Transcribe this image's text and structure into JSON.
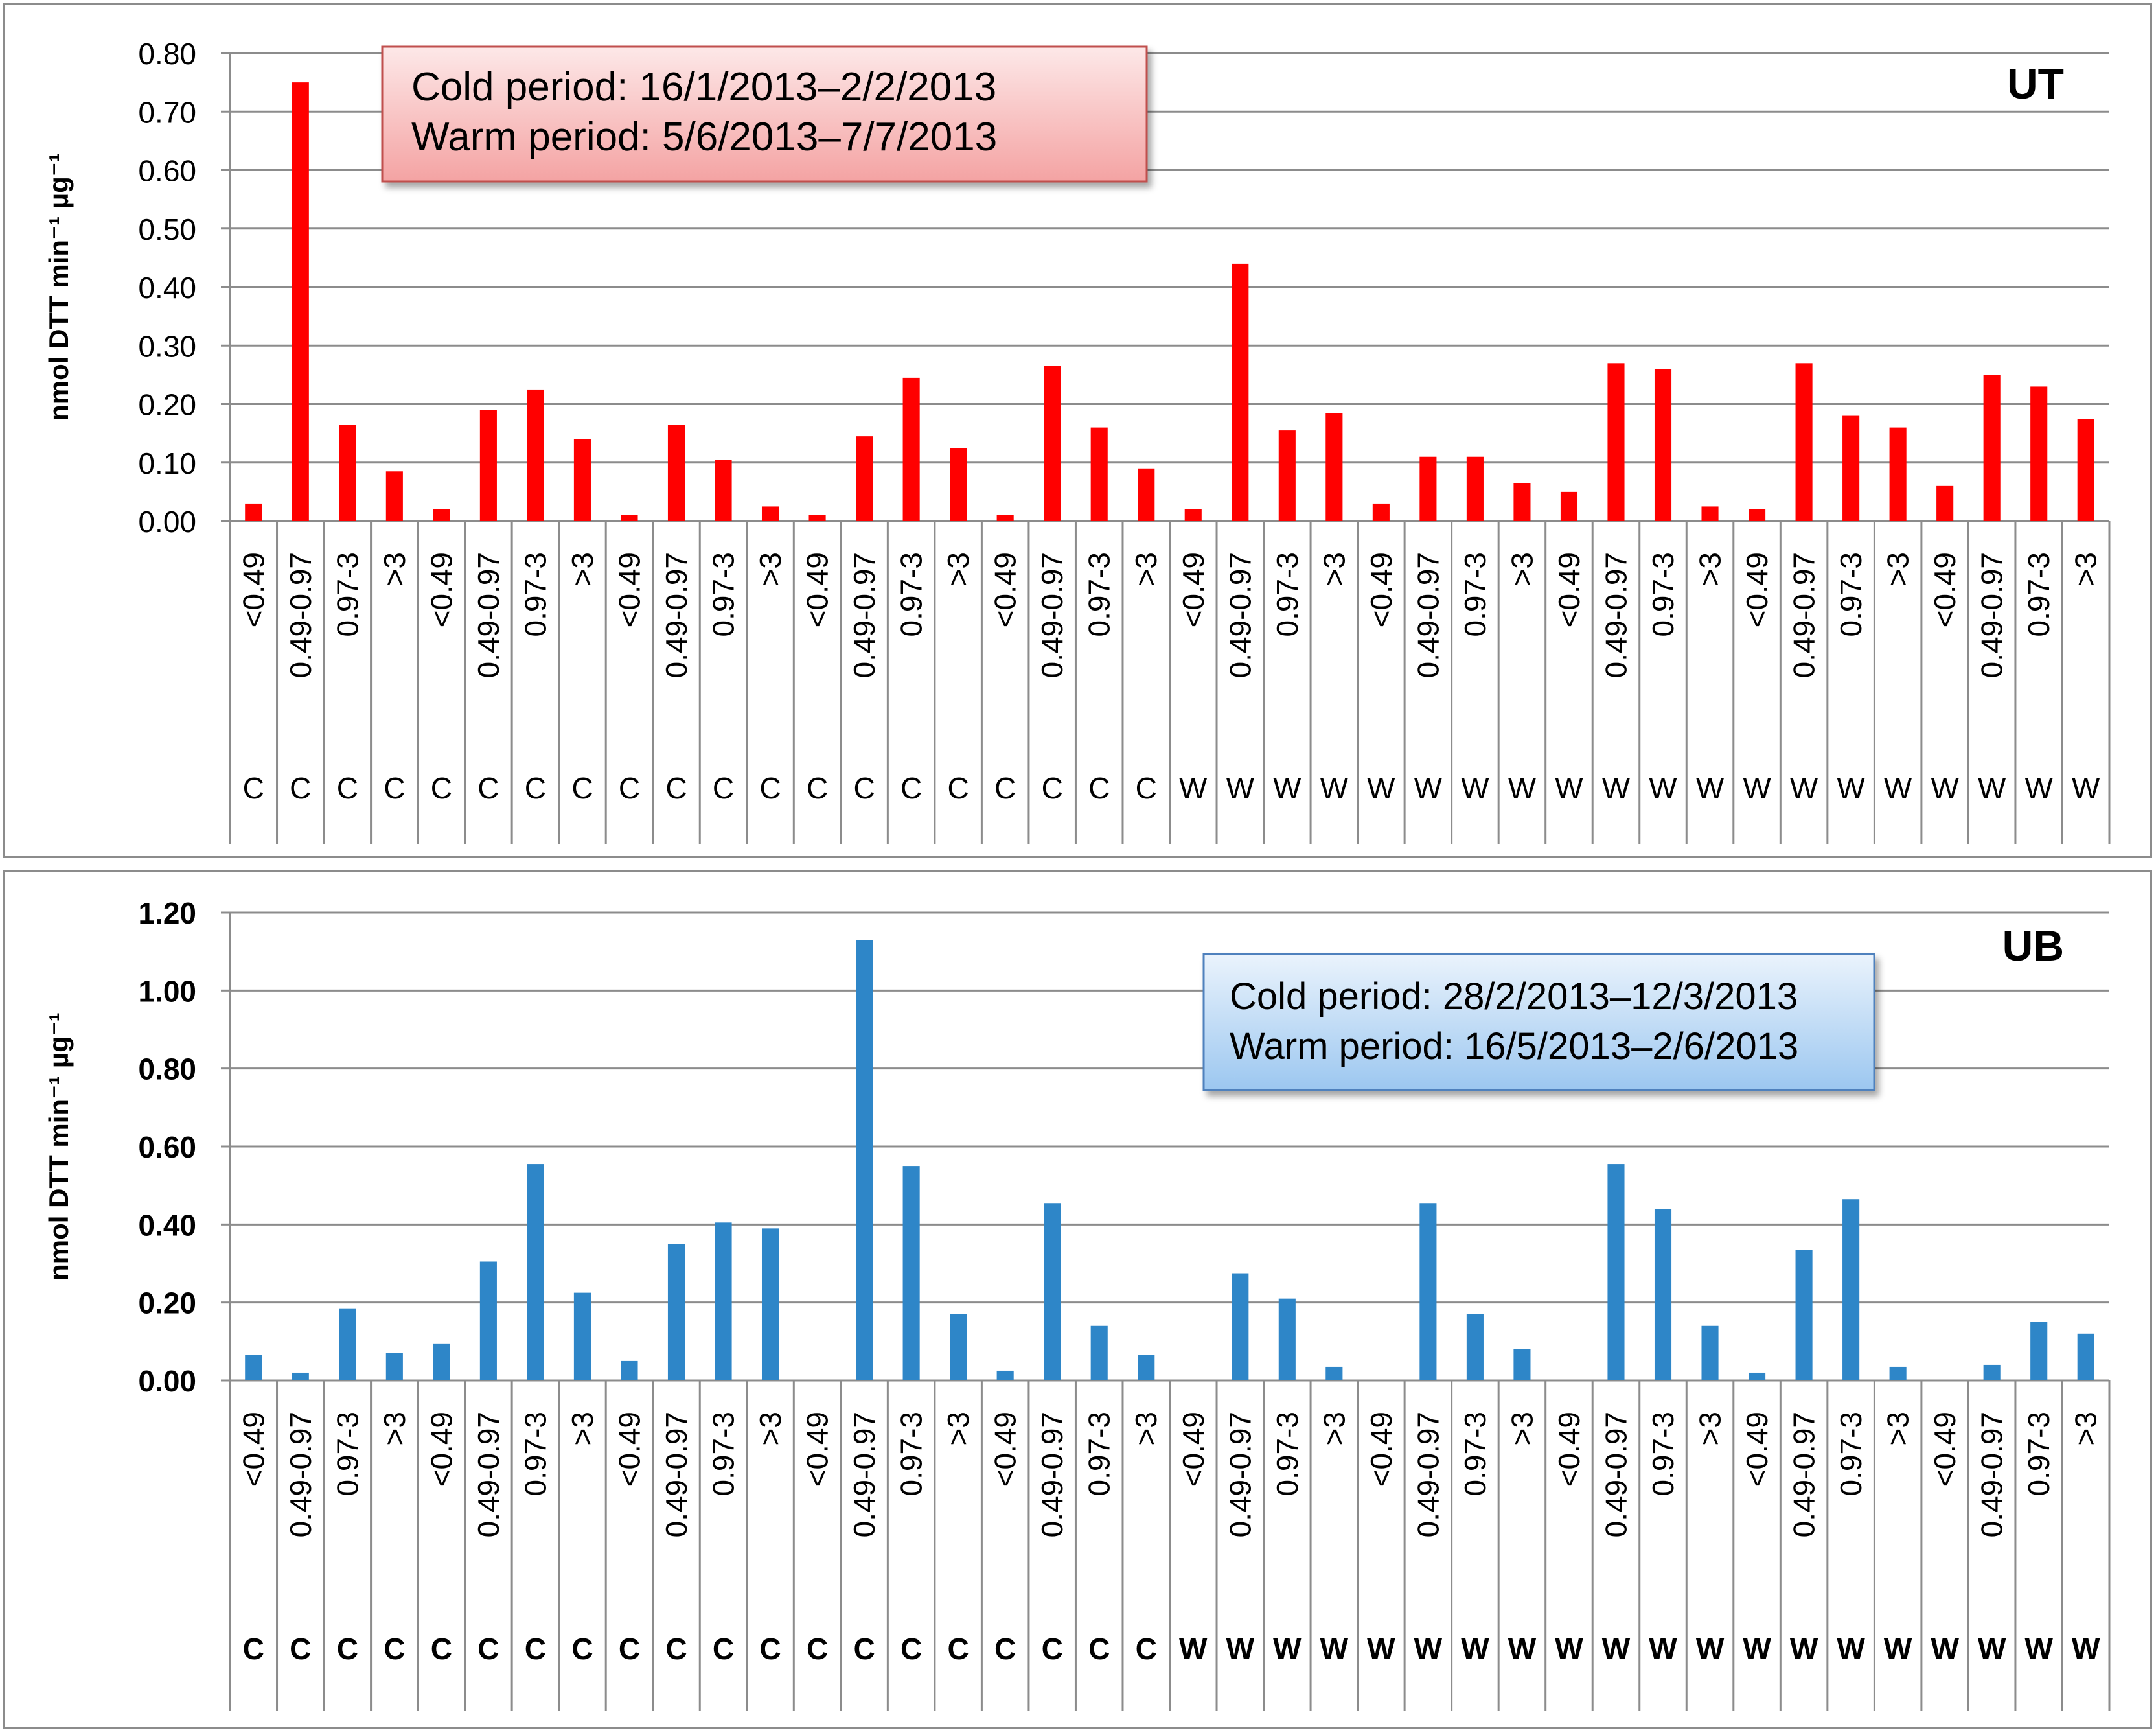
{
  "chart_data": [
    {
      "type": "bar",
      "panel_label": "UT",
      "ylabel": "nmol DTT  min⁻¹ µg⁻¹",
      "ylim": [
        0,
        0.8
      ],
      "yticks": [
        "0.00",
        "0.10",
        "0.20",
        "0.30",
        "0.40",
        "0.50",
        "0.60",
        "0.70",
        "0.80"
      ],
      "ytick_values": [
        0,
        0.1,
        0.2,
        0.3,
        0.4,
        0.5,
        0.6,
        0.7,
        0.8
      ],
      "categories": [
        "<0.49",
        "0.49-0.97",
        "0.97-3",
        ">3",
        "<0.49",
        "0.49-0.97",
        "0.97-3",
        ">3",
        "<0.49",
        "0.49-0.97",
        "0.97-3",
        ">3",
        "<0.49",
        "0.49-0.97",
        "0.97-3",
        ">3",
        "<0.49",
        "0.49-0.97",
        "0.97-3",
        ">3",
        "<0.49",
        "0.49-0.97",
        "0.97-3",
        ">3",
        "<0.49",
        "0.49-0.97",
        "0.97-3",
        ">3",
        "<0.49",
        "0.49-0.97",
        "0.97-3",
        ">3",
        "<0.49",
        "0.49-0.97",
        "0.97-3",
        ">3",
        "<0.49",
        "0.49-0.97",
        "0.97-3",
        ">3"
      ],
      "period": [
        "C",
        "C",
        "C",
        "C",
        "C",
        "C",
        "C",
        "C",
        "C",
        "C",
        "C",
        "C",
        "C",
        "C",
        "C",
        "C",
        "C",
        "C",
        "C",
        "C",
        "W",
        "W",
        "W",
        "W",
        "W",
        "W",
        "W",
        "W",
        "W",
        "W",
        "W",
        "W",
        "W",
        "W",
        "W",
        "W",
        "W",
        "W",
        "W",
        "W"
      ],
      "values": [
        0.03,
        0.75,
        0.165,
        0.085,
        0.02,
        0.19,
        0.225,
        0.14,
        0.01,
        0.165,
        0.105,
        0.025,
        0.01,
        0.145,
        0.245,
        0.125,
        0.01,
        0.265,
        0.16,
        0.09,
        0.02,
        0.44,
        0.155,
        0.185,
        0.03,
        0.11,
        0.11,
        0.065,
        0.05,
        0.27,
        0.26,
        0.025,
        0.02,
        0.27,
        0.18,
        0.16,
        0.06,
        0.25,
        0.23,
        0.175
      ],
      "bar_color": "#ff0000",
      "period_label_bold": false,
      "note_box": {
        "lines": [
          "Cold period: 16/1/2013–2/2/2013",
          "Warm period:  5/6/2013–7/7/2013"
        ],
        "fill_top": "#fde8e8",
        "fill_bottom": "#f4a3a3",
        "border": "#c0504d"
      },
      "grid": true,
      "legend": "none"
    },
    {
      "type": "bar",
      "panel_label": "UB",
      "ylabel": "nmol DTT  min⁻¹ µg⁻¹",
      "ylim": [
        0,
        1.2
      ],
      "yticks": [
        "0.00",
        "0.20",
        "0.40",
        "0.60",
        "0.80",
        "1.00",
        "1.20"
      ],
      "ytick_values": [
        0,
        0.2,
        0.4,
        0.6,
        0.8,
        1.0,
        1.2
      ],
      "categories": [
        "<0.49",
        "0.49-0.97",
        "0.97-3",
        ">3",
        "<0.49",
        "0.49-0.97",
        "0.97-3",
        ">3",
        "<0.49",
        "0.49-0.97",
        "0.97-3",
        ">3",
        "<0.49",
        "0.49-0.97",
        "0.97-3",
        ">3",
        "<0.49",
        "0.49-0.97",
        "0.97-3",
        ">3",
        "<0.49",
        "0.49-0.97",
        "0.97-3",
        ">3",
        "<0.49",
        "0.49-0.97",
        "0.97-3",
        ">3",
        "<0.49",
        "0.49-0.97",
        "0.97-3",
        ">3",
        "<0.49",
        "0.49-0.97",
        "0.97-3",
        ">3",
        "<0.49",
        "0.49-0.97",
        "0.97-3",
        ">3"
      ],
      "period": [
        "C",
        "C",
        "C",
        "C",
        "C",
        "C",
        "C",
        "C",
        "C",
        "C",
        "C",
        "C",
        "C",
        "C",
        "C",
        "C",
        "C",
        "C",
        "C",
        "C",
        "W",
        "W",
        "W",
        "W",
        "W",
        "W",
        "W",
        "W",
        "W",
        "W",
        "W",
        "W",
        "W",
        "W",
        "W",
        "W",
        "W",
        "W",
        "W",
        "W"
      ],
      "values": [
        0.065,
        0.02,
        0.185,
        0.07,
        0.095,
        0.305,
        0.555,
        0.225,
        0.05,
        0.35,
        0.405,
        0.39,
        0.0,
        1.13,
        0.55,
        0.17,
        0.025,
        0.455,
        0.14,
        0.065,
        0.0,
        0.275,
        0.21,
        0.035,
        0.0,
        0.455,
        0.17,
        0.08,
        0.0,
        0.555,
        0.44,
        0.14,
        0.02,
        0.335,
        0.465,
        0.035,
        0.0,
        0.04,
        0.15,
        0.12
      ],
      "bar_color": "#2e86c8",
      "period_label_bold": true,
      "note_box": {
        "lines": [
          "Cold period: 28/2/2013–12/3/2013",
          "Warm period:  16/5/2013–2/6/2013"
        ],
        "fill_top": "#eaf3fc",
        "fill_bottom": "#9cc7f0",
        "border": "#4f81bd"
      },
      "grid": true,
      "legend": "none"
    }
  ]
}
